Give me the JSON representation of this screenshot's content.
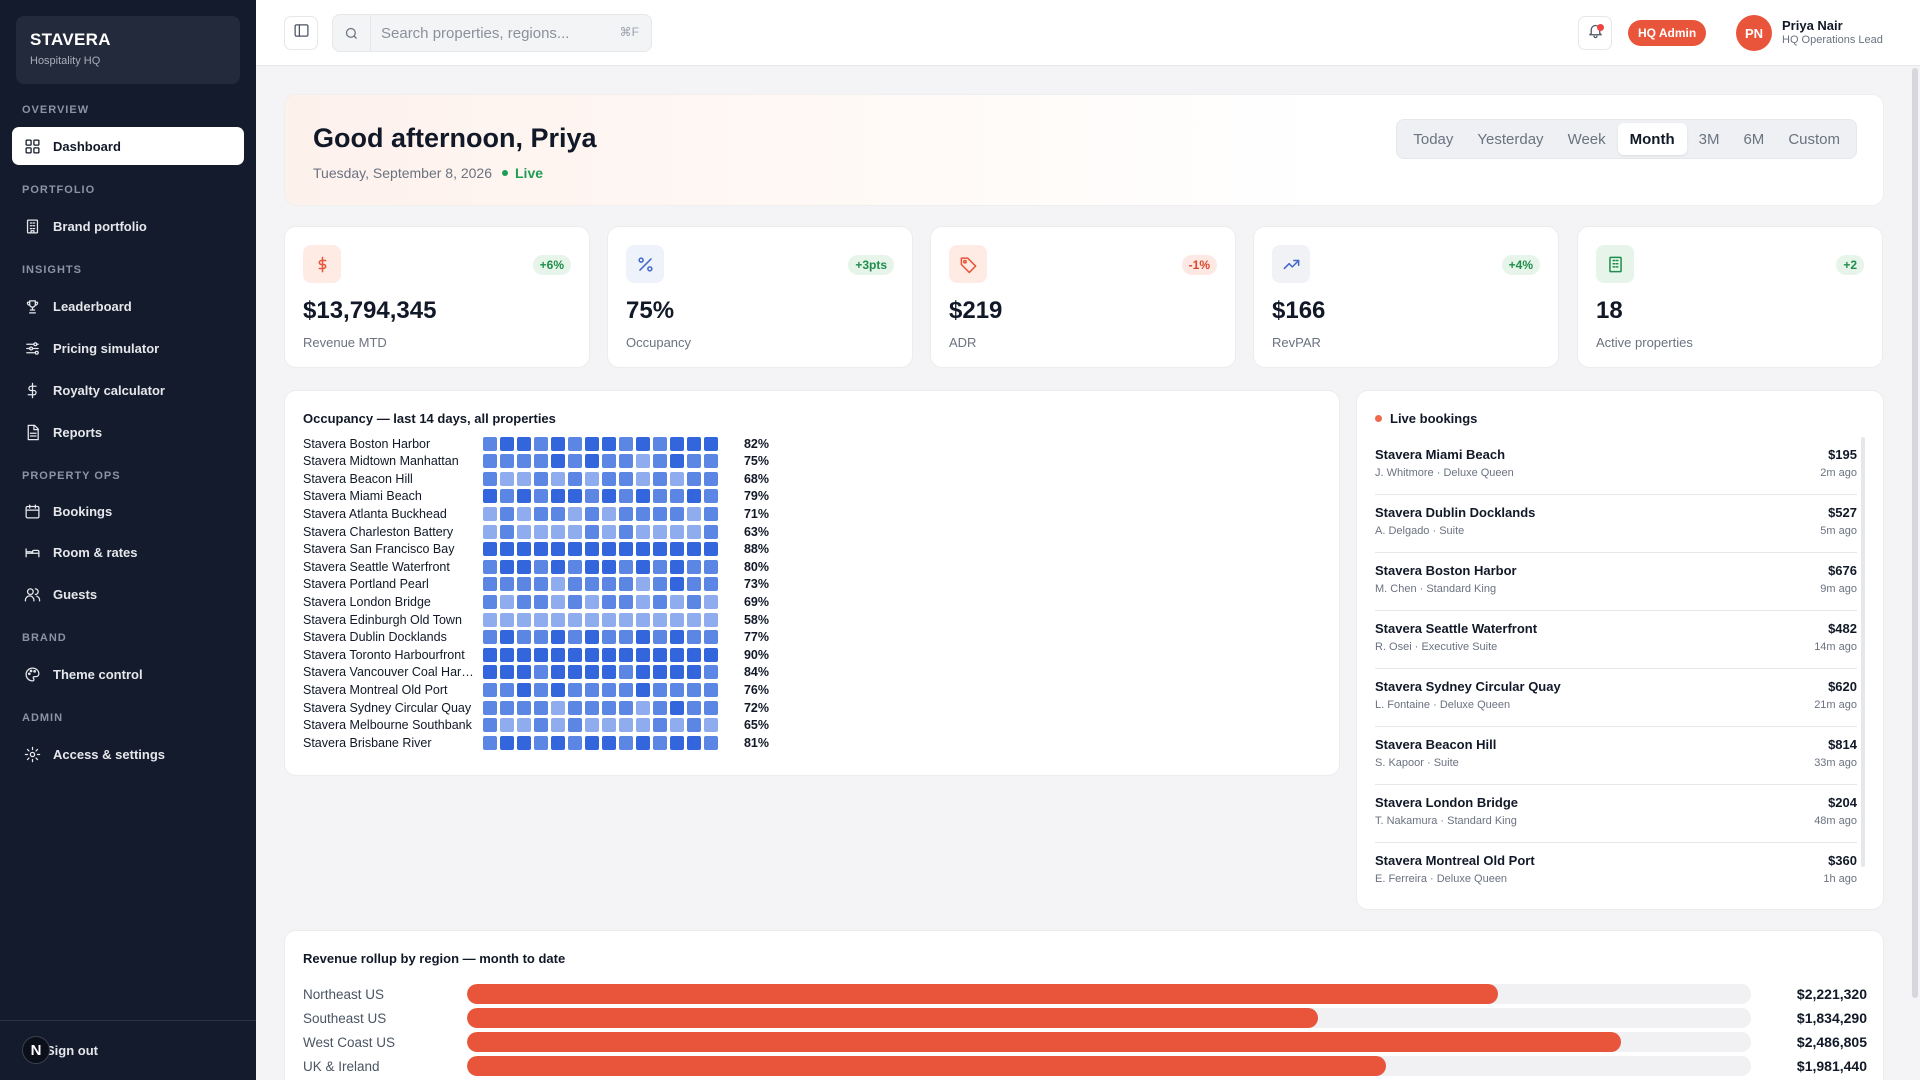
{
  "brand": {
    "name": "STAVERA",
    "subtitle": "Hospitality HQ"
  },
  "nav": {
    "sections": {
      "overview": "OVERVIEW",
      "portfolio": "PORTFOLIO",
      "insights": "INSIGHTS",
      "property_ops": "PROPERTY OPS",
      "brand": "BRAND",
      "admin": "ADMIN"
    },
    "items": {
      "dashboard": "Dashboard",
      "brand_portfolio": "Brand portfolio",
      "leaderboard": "Leaderboard",
      "pricing_simulator": "Pricing simulator",
      "royalty_calculator": "Royalty calculator",
      "reports": "Reports",
      "bookings": "Bookings",
      "room_rates": "Room & rates",
      "guests": "Guests",
      "theme_control": "Theme control",
      "access_settings": "Access & settings"
    },
    "sign_out": "Sign out",
    "sign_out_badge": "N"
  },
  "topbar": {
    "search_placeholder": "Search properties, regions...",
    "search_shortcut": "⌘F",
    "role_badge": "HQ Admin",
    "user_initials": "PN",
    "user_name": "Priya Nair",
    "user_role": "HQ Operations Lead"
  },
  "greeting": {
    "title": "Good afternoon, Priya",
    "date": "Tuesday, September 8, 2026",
    "live": "Live",
    "ranges": [
      "Today",
      "Yesterday",
      "Week",
      "Month",
      "3M",
      "6M",
      "Custom"
    ],
    "active_range": "Month"
  },
  "kpis": [
    {
      "value": "$13,794,345",
      "label": "Revenue MTD",
      "delta": "+6%",
      "trend": "up",
      "icon": "dollar-icon",
      "icon_bg": "#fdebe4",
      "icon_color": "#e8553a"
    },
    {
      "value": "75%",
      "label": "Occupancy",
      "delta": "+3pts",
      "trend": "up",
      "icon": "percent-icon",
      "icon_bg": "#eef2fb",
      "icon_color": "#4169c8"
    },
    {
      "value": "$219",
      "label": "ADR",
      "delta": "-1%",
      "trend": "down",
      "icon": "tag-icon",
      "icon_bg": "#fdebe4",
      "icon_color": "#e8553a"
    },
    {
      "value": "$166",
      "label": "RevPAR",
      "delta": "+4%",
      "trend": "up",
      "icon": "trending-up-icon",
      "icon_bg": "#f1f2f6",
      "icon_color": "#4169c8"
    },
    {
      "value": "18",
      "label": "Active properties",
      "delta": "+2",
      "trend": "up",
      "icon": "building-icon",
      "icon_bg": "#e6f4ea",
      "icon_color": "#1e8e4a"
    }
  ],
  "occupancy": {
    "title": "Occupancy — last 14 days, all properties",
    "rows": [
      {
        "name": "Stavera Boston Harbor",
        "pct": "82%"
      },
      {
        "name": "Stavera Midtown Manhattan",
        "pct": "75%"
      },
      {
        "name": "Stavera Beacon Hill",
        "pct": "68%"
      },
      {
        "name": "Stavera Miami Beach",
        "pct": "79%"
      },
      {
        "name": "Stavera Atlanta Buckhead",
        "pct": "71%"
      },
      {
        "name": "Stavera Charleston Battery",
        "pct": "63%"
      },
      {
        "name": "Stavera San Francisco Bay",
        "pct": "88%"
      },
      {
        "name": "Stavera Seattle Waterfront",
        "pct": "80%"
      },
      {
        "name": "Stavera Portland Pearl",
        "pct": "73%"
      },
      {
        "name": "Stavera London Bridge",
        "pct": "69%"
      },
      {
        "name": "Stavera Edinburgh Old Town",
        "pct": "58%"
      },
      {
        "name": "Stavera Dublin Docklands",
        "pct": "77%"
      },
      {
        "name": "Stavera Toronto Harbourfront",
        "pct": "90%"
      },
      {
        "name": "Stavera Vancouver Coal Harbour",
        "pct": "84%"
      },
      {
        "name": "Stavera Montreal Old Port",
        "pct": "76%"
      },
      {
        "name": "Stavera Sydney Circular Quay",
        "pct": "72%"
      },
      {
        "name": "Stavera Melbourne Southbank",
        "pct": "65%"
      },
      {
        "name": "Stavera Brisbane River",
        "pct": "81%"
      }
    ],
    "colors": {
      "high": "#3366dd",
      "mid": "#5b86e3",
      "low": "#8fadee"
    }
  },
  "live_bookings": {
    "title": "Live bookings",
    "items": [
      {
        "property": "Stavera Miami Beach",
        "guest": "J. Whitmore · Deluxe Queen",
        "amount": "$195",
        "time": "2m ago"
      },
      {
        "property": "Stavera Dublin Docklands",
        "guest": "A. Delgado · Suite",
        "amount": "$527",
        "time": "5m ago"
      },
      {
        "property": "Stavera Boston Harbor",
        "guest": "M. Chen · Standard King",
        "amount": "$676",
        "time": "9m ago"
      },
      {
        "property": "Stavera Seattle Waterfront",
        "guest": "R. Osei · Executive Suite",
        "amount": "$482",
        "time": "14m ago"
      },
      {
        "property": "Stavera Sydney Circular Quay",
        "guest": "L. Fontaine · Deluxe Queen",
        "amount": "$620",
        "time": "21m ago"
      },
      {
        "property": "Stavera Beacon Hill",
        "guest": "S. Kapoor · Suite",
        "amount": "$814",
        "time": "33m ago"
      },
      {
        "property": "Stavera London Bridge",
        "guest": "T. Nakamura · Standard King",
        "amount": "$204",
        "time": "48m ago"
      },
      {
        "property": "Stavera Montreal Old Port",
        "guest": "E. Ferreira · Deluxe Queen",
        "amount": "$360",
        "time": "1h ago"
      }
    ]
  },
  "revenue": {
    "title": "Revenue rollup by region — month to date",
    "rows": [
      {
        "region": "Northeast US",
        "amount": "$2,221,320",
        "share": 0.803
      },
      {
        "region": "Southeast US",
        "amount": "$1,834,290",
        "share": 0.663
      },
      {
        "region": "West Coast US",
        "amount": "$2,486,805",
        "share": 0.899
      },
      {
        "region": "UK & Ireland",
        "amount": "$1,981,440",
        "share": 0.716
      }
    ],
    "bar_color": "#e8553a"
  }
}
